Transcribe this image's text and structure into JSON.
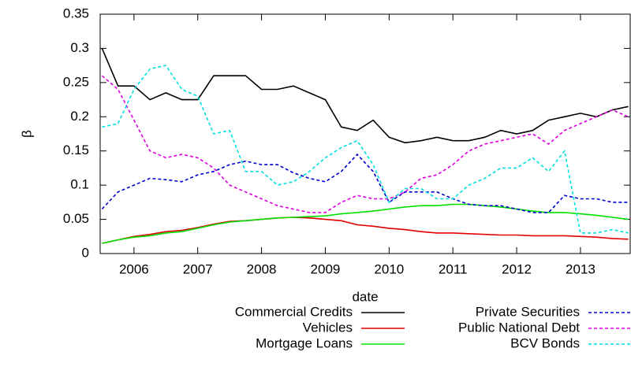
{
  "chart_data": {
    "type": "line",
    "x_label": "date",
    "y_label": "β",
    "x": [
      2005.5,
      2005.75,
      2006,
      2006.25,
      2006.5,
      2006.75,
      2007,
      2007.25,
      2007.5,
      2007.75,
      2008,
      2008.25,
      2008.5,
      2008.75,
      2009,
      2009.25,
      2009.5,
      2009.75,
      2010,
      2010.25,
      2010.5,
      2010.75,
      2011,
      2011.25,
      2011.5,
      2011.75,
      2012,
      2012.25,
      2012.5,
      2012.75,
      2013,
      2013.25,
      2013.5,
      2013.75
    ],
    "xlim": [
      2005.47,
      2013.78
    ],
    "xticks": [
      2006,
      2007,
      2008,
      2009,
      2010,
      2011,
      2012,
      2013
    ],
    "ylim": [
      0,
      0.35
    ],
    "yticks": [
      0,
      0.05,
      0.1,
      0.15,
      0.2,
      0.25,
      0.3,
      0.35
    ],
    "grid": false,
    "legend": "bottom",
    "series": [
      {
        "name": "Commercial Credits",
        "color": "#000000",
        "dashed": false,
        "values": [
          0.3,
          0.245,
          0.245,
          0.225,
          0.235,
          0.225,
          0.225,
          0.26,
          0.26,
          0.26,
          0.24,
          0.24,
          0.245,
          0.235,
          0.225,
          0.185,
          0.18,
          0.195,
          0.17,
          0.162,
          0.165,
          0.17,
          0.165,
          0.165,
          0.17,
          0.18,
          0.175,
          0.18,
          0.195,
          0.2,
          0.205,
          0.2,
          0.21,
          0.215
        ]
      },
      {
        "name": "Vehicles",
        "color": "#e00000",
        "dashed": false,
        "values": [
          0.015,
          0.02,
          0.025,
          0.028,
          0.032,
          0.034,
          0.038,
          0.043,
          0.047,
          0.048,
          0.05,
          0.052,
          0.053,
          0.052,
          0.05,
          0.048,
          0.042,
          0.04,
          0.037,
          0.035,
          0.032,
          0.03,
          0.03,
          0.029,
          0.028,
          0.027,
          0.027,
          0.026,
          0.026,
          0.026,
          0.025,
          0.024,
          0.022,
          0.021
        ]
      },
      {
        "name": "Mortgage Loans",
        "color": "#00e000",
        "dashed": false,
        "values": [
          0.015,
          0.02,
          0.024,
          0.026,
          0.03,
          0.032,
          0.037,
          0.042,
          0.046,
          0.048,
          0.05,
          0.052,
          0.053,
          0.054,
          0.055,
          0.058,
          0.06,
          0.062,
          0.065,
          0.068,
          0.07,
          0.07,
          0.072,
          0.072,
          0.07,
          0.068,
          0.065,
          0.062,
          0.06,
          0.06,
          0.058,
          0.056,
          0.053,
          0.05
        ]
      },
      {
        "name": "Private Securities",
        "color": "#0000d0",
        "dashed": true,
        "values": [
          0.065,
          0.09,
          0.1,
          0.11,
          0.108,
          0.105,
          0.115,
          0.12,
          0.13,
          0.135,
          0.13,
          0.13,
          0.118,
          0.11,
          0.105,
          0.12,
          0.145,
          0.12,
          0.075,
          0.09,
          0.09,
          0.09,
          0.08,
          0.072,
          0.07,
          0.07,
          0.065,
          0.06,
          0.06,
          0.085,
          0.08,
          0.08,
          0.075,
          0.075
        ]
      },
      {
        "name": "Public National Debt",
        "color": "#e000e0",
        "dashed": true,
        "values": [
          0.26,
          0.24,
          0.195,
          0.15,
          0.14,
          0.145,
          0.14,
          0.125,
          0.1,
          0.09,
          0.08,
          0.07,
          0.065,
          0.06,
          0.06,
          0.075,
          0.085,
          0.08,
          0.08,
          0.09,
          0.11,
          0.115,
          0.13,
          0.15,
          0.16,
          0.165,
          0.17,
          0.175,
          0.16,
          0.18,
          0.19,
          0.2,
          0.21,
          0.2
        ]
      },
      {
        "name": "BCV Bonds",
        "color": "#00e0e0",
        "dashed": true,
        "values": [
          0.185,
          0.19,
          0.24,
          0.27,
          0.275,
          0.24,
          0.23,
          0.175,
          0.18,
          0.12,
          0.12,
          0.1,
          0.105,
          0.12,
          0.14,
          0.155,
          0.165,
          0.13,
          0.075,
          0.095,
          0.095,
          0.08,
          0.08,
          0.1,
          0.11,
          0.125,
          0.125,
          0.14,
          0.12,
          0.15,
          0.03,
          0.03,
          0.035,
          0.03
        ]
      }
    ]
  }
}
